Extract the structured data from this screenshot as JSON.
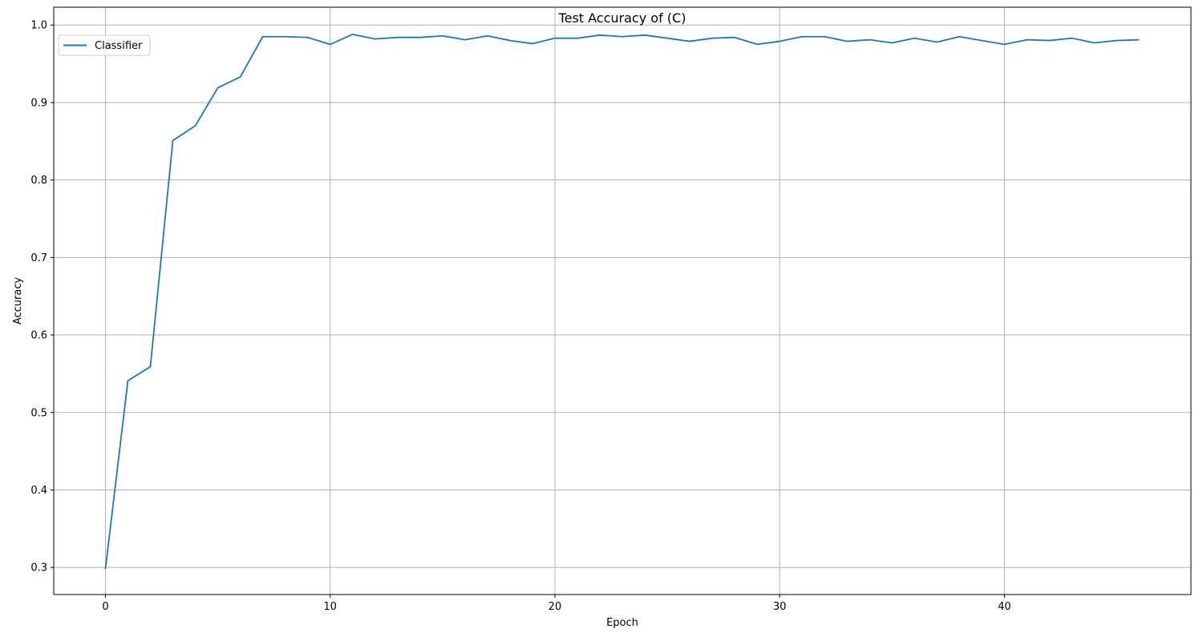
{
  "chart_data": {
    "type": "line",
    "title": "Test Accuracy of (C)",
    "xlabel": "Epoch",
    "ylabel": "Accuracy",
    "xlim": [
      -2.3,
      48.3
    ],
    "ylim": [
      0.265,
      1.023
    ],
    "xticks": [
      0,
      10,
      20,
      30,
      40
    ],
    "xtick_labels": [
      "0",
      "10",
      "20",
      "30",
      "40"
    ],
    "yticks": [
      0.3,
      0.4,
      0.5,
      0.6,
      0.7,
      0.8,
      0.9,
      1.0
    ],
    "ytick_labels": [
      "0.3",
      "0.4",
      "0.5",
      "0.6",
      "0.7",
      "0.8",
      "0.9",
      "1.0"
    ],
    "grid": true,
    "legend_position": "top-left",
    "series": [
      {
        "name": "Classifier",
        "color": "#1f77b4",
        "x": [
          0,
          1,
          2,
          3,
          4,
          5,
          6,
          7,
          8,
          9,
          10,
          11,
          12,
          13,
          14,
          15,
          16,
          17,
          18,
          19,
          20,
          21,
          22,
          23,
          24,
          25,
          26,
          27,
          28,
          29,
          30,
          31,
          32,
          33,
          34,
          35,
          36,
          37,
          38,
          39,
          40,
          41,
          42,
          43,
          44,
          45,
          46
        ],
        "values": [
          0.298,
          0.541,
          0.559,
          0.851,
          0.87,
          0.919,
          0.933,
          0.985,
          0.985,
          0.984,
          0.975,
          0.988,
          0.982,
          0.984,
          0.984,
          0.986,
          0.981,
          0.986,
          0.98,
          0.976,
          0.983,
          0.983,
          0.987,
          0.985,
          0.987,
          0.983,
          0.979,
          0.983,
          0.984,
          0.975,
          0.979,
          0.985,
          0.985,
          0.979,
          0.981,
          0.977,
          0.983,
          0.978,
          0.985,
          0.98,
          0.975,
          0.981,
          0.98,
          0.983,
          0.977,
          0.98,
          0.981
        ]
      }
    ]
  }
}
